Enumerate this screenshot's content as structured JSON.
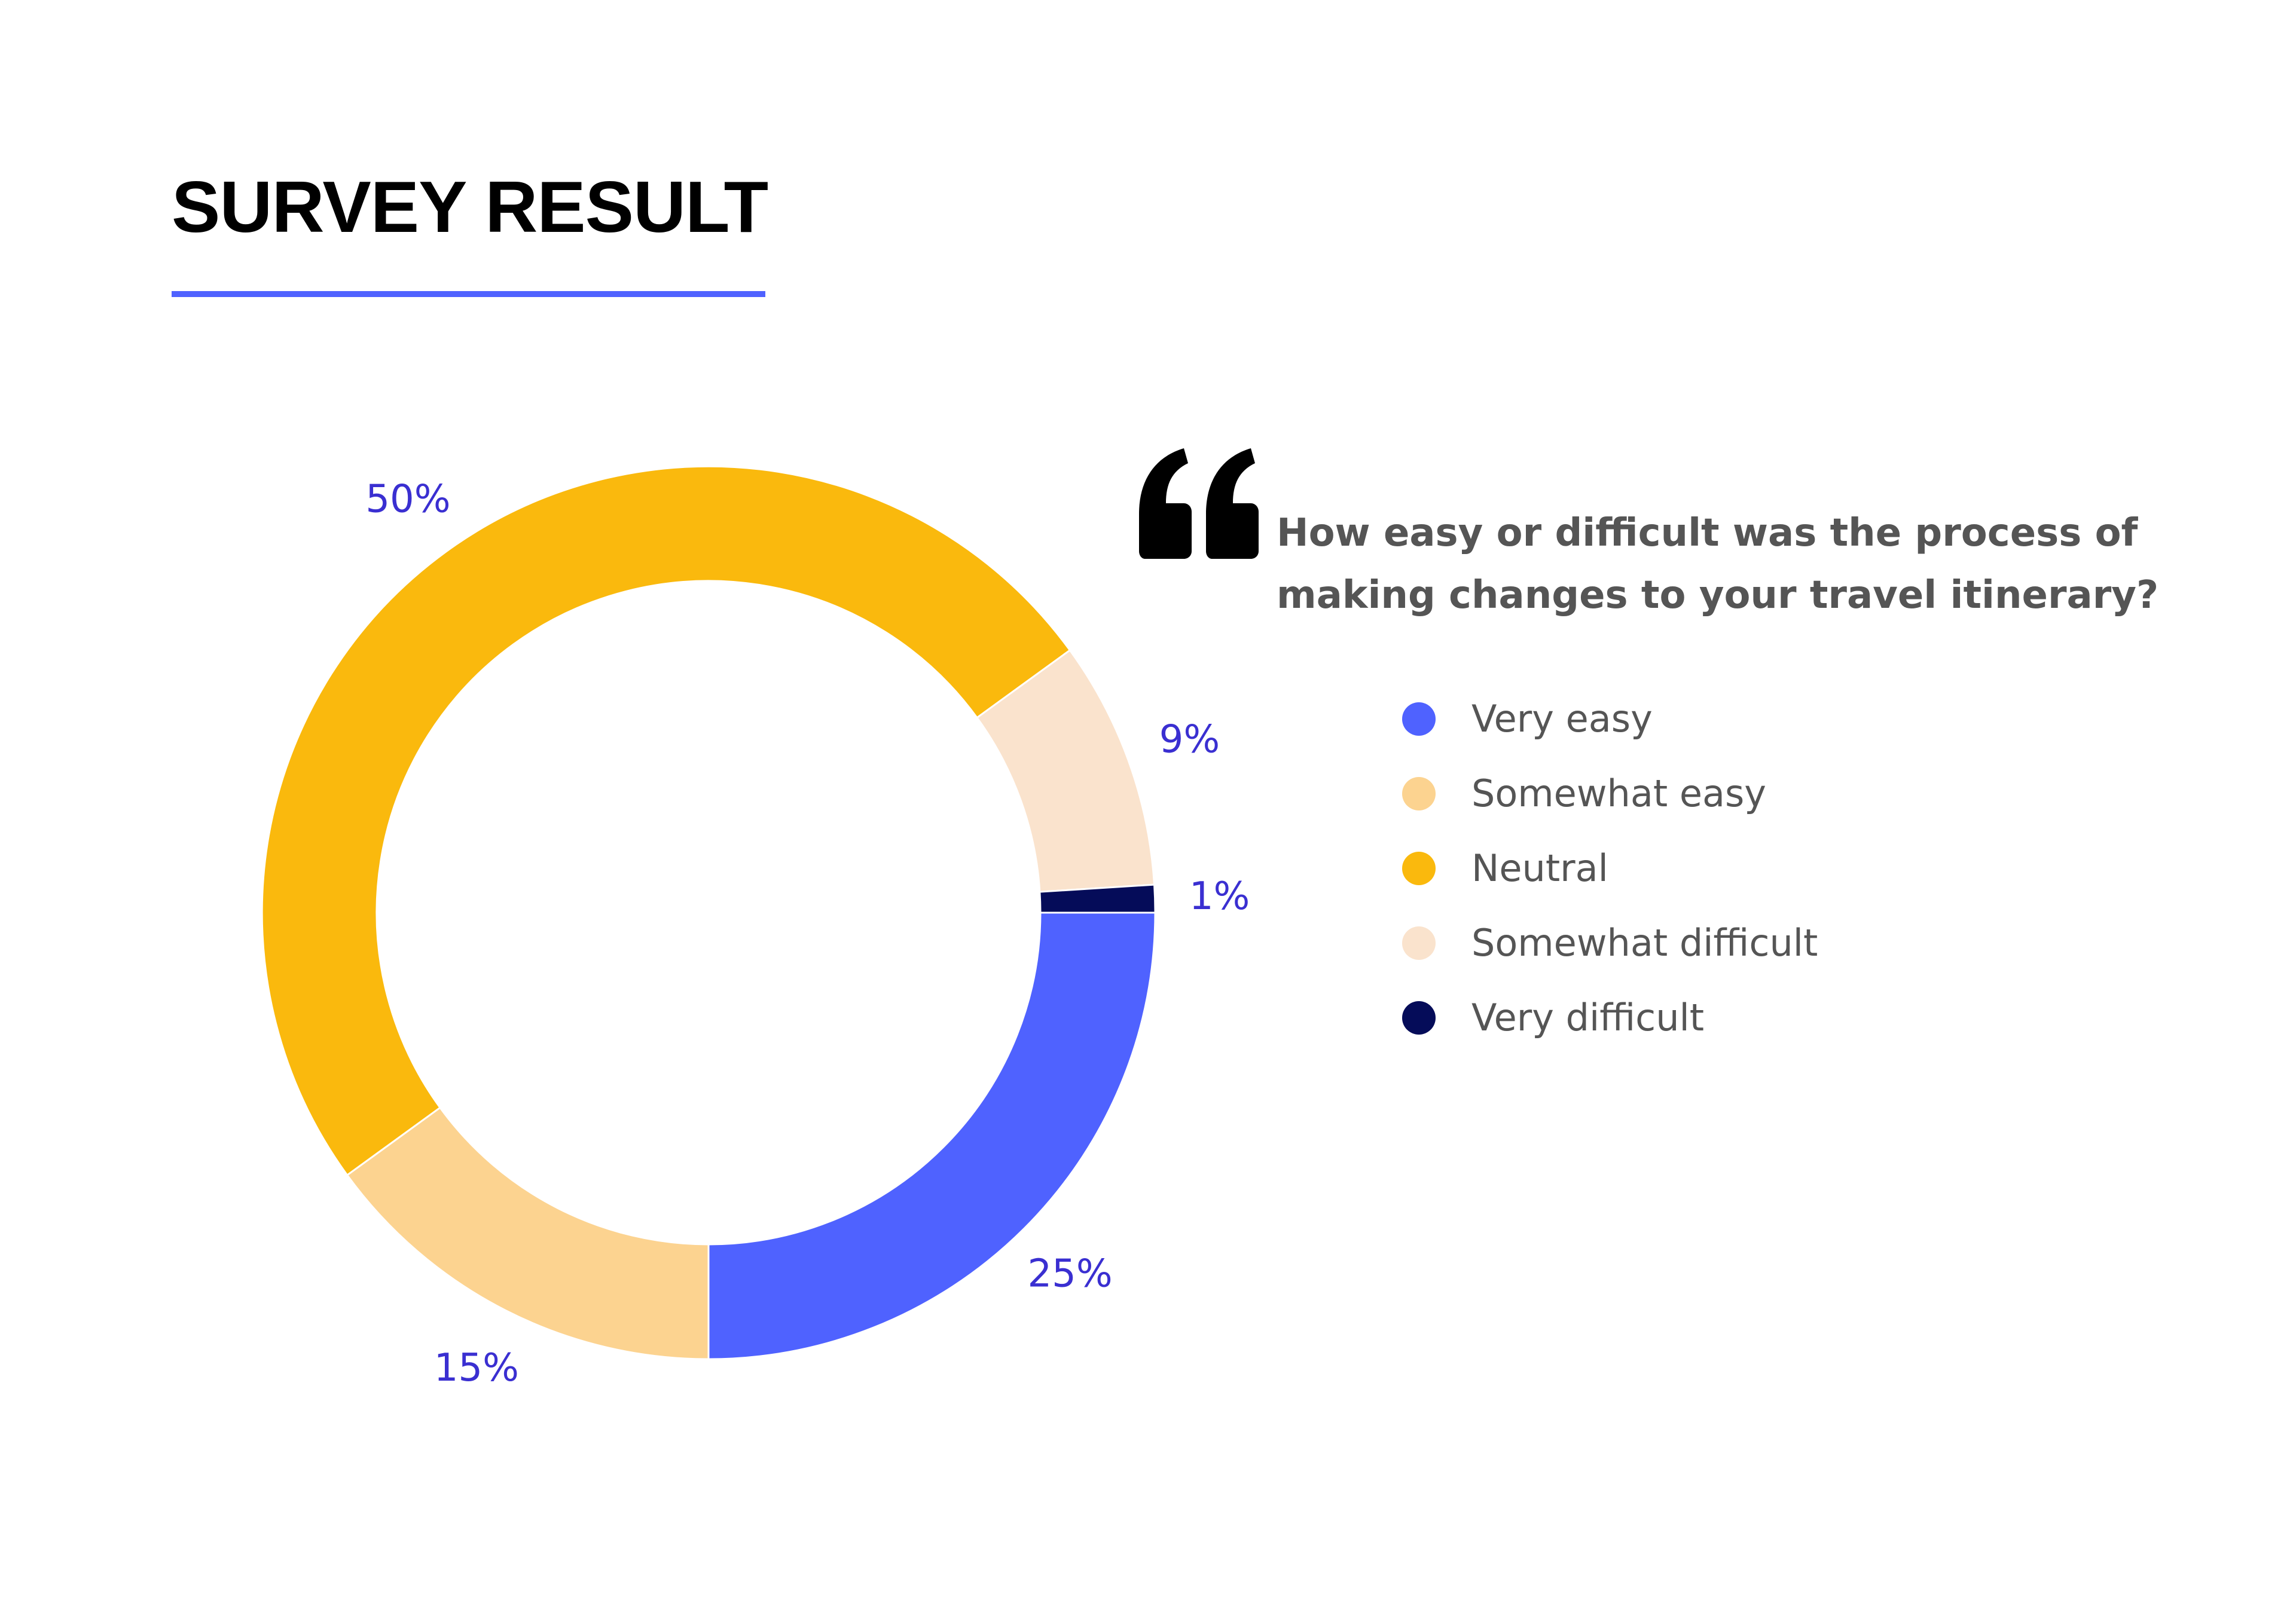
{
  "header": {
    "title": "SURVEY RESULT",
    "rule_color": "#4f62ff"
  },
  "question": "How easy or difficult was the process of making changes to your travel itinerary?",
  "quote_icon": "double-quote-icon",
  "chart_data": {
    "type": "pie",
    "style": "donut",
    "categories": [
      "Very easy",
      "Somewhat easy",
      "Neutral",
      "Somewhat difficult",
      "Very difficult"
    ],
    "values": [
      25,
      15,
      50,
      9,
      1
    ],
    "data_labels": [
      "25%",
      "15%",
      "50%",
      "9%",
      "1%"
    ],
    "colors": [
      "#4f62ff",
      "#fcd390",
      "#fab90d",
      "#fae3cd",
      "#050c59"
    ],
    "label_color": "#3a2fd1",
    "legend": "right"
  }
}
